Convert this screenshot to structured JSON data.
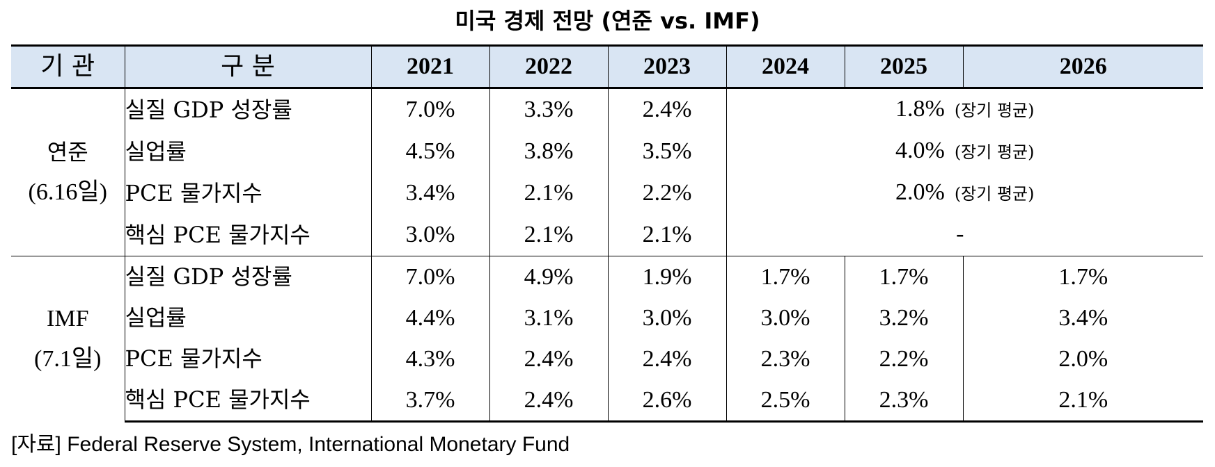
{
  "title": "미국 경제 전망 (연준 vs. IMF)",
  "header": {
    "institution": "기 관",
    "category": "구 분",
    "years": [
      "2021",
      "2022",
      "2023",
      "2024",
      "2025",
      "2026"
    ]
  },
  "fed": {
    "name": "연준",
    "date": "(6.16일)",
    "rows": [
      {
        "label": "실질 GDP 성장률",
        "v2021": "7.0%",
        "v2022": "3.3%",
        "v2023": "2.4%",
        "longrun": "1.8%",
        "note": "(장기 평균)"
      },
      {
        "label": "실업률",
        "v2021": "4.5%",
        "v2022": "3.8%",
        "v2023": "3.5%",
        "longrun": "4.0%",
        "note": "(장기 평균)"
      },
      {
        "label": "PCE 물가지수",
        "v2021": "3.4%",
        "v2022": "2.1%",
        "v2023": "2.2%",
        "longrun": "2.0%",
        "note": "(장기 평균)"
      },
      {
        "label": "핵심 PCE 물가지수",
        "v2021": "3.0%",
        "v2022": "2.1%",
        "v2023": "2.1%",
        "longrun": "-",
        "note": ""
      }
    ]
  },
  "imf": {
    "name": "IMF",
    "date": "(7.1일)",
    "rows": [
      {
        "label": "실질 GDP 성장률",
        "values": [
          "7.0%",
          "4.9%",
          "1.9%",
          "1.7%",
          "1.7%",
          "1.7%"
        ]
      },
      {
        "label": "실업률",
        "values": [
          "4.4%",
          "3.1%",
          "3.0%",
          "3.0%",
          "3.2%",
          "3.4%"
        ]
      },
      {
        "label": "PCE 물가지수",
        "values": [
          "4.3%",
          "2.4%",
          "2.4%",
          "2.3%",
          "2.2%",
          "2.0%"
        ]
      },
      {
        "label": "핵심 PCE 물가지수",
        "values": [
          "3.7%",
          "2.4%",
          "2.6%",
          "2.5%",
          "2.3%",
          "2.1%"
        ]
      }
    ]
  },
  "source": "[자료] Federal Reserve System, International Monetary Fund",
  "colors": {
    "header_bg": "#d9e5f3",
    "rule": "#000000"
  }
}
